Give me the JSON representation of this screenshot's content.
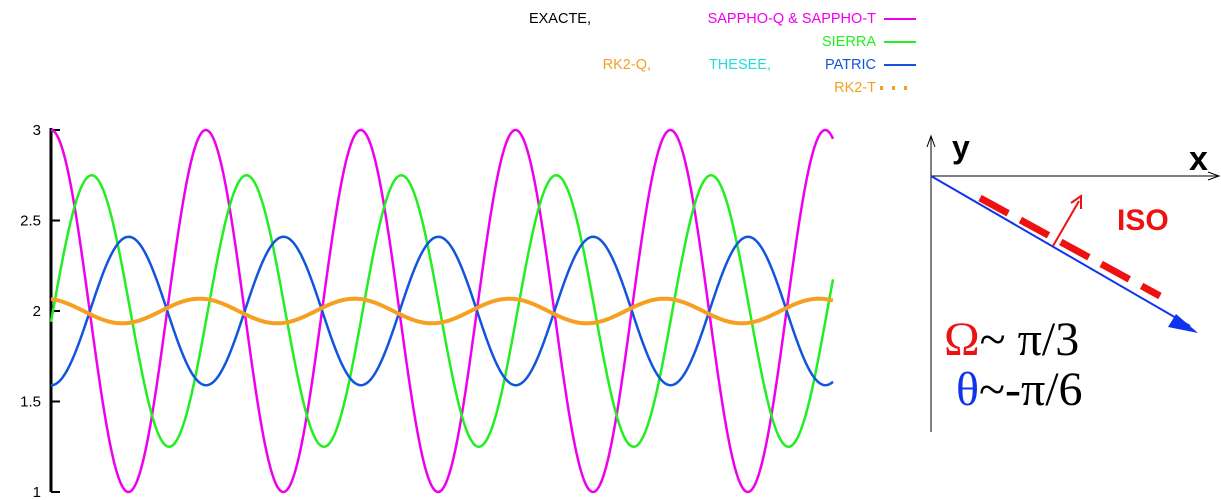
{
  "legend": {
    "row1_a": "EXACTE,",
    "row1_b": "SAPPHO-Q & SAPPHO-T",
    "row2": "SIERRA",
    "row3_a": "RK2-Q,",
    "row3_b": "THESEE,",
    "row3_c": "PATRIC",
    "row4": "RK2-T"
  },
  "inset": {
    "y_label": "y",
    "x_label": "x",
    "iso_label": "ISO",
    "omega_symbol": "Ω",
    "omega_value": "~ π/3",
    "theta_symbol": "θ",
    "theta_value": "~-π/6"
  },
  "colors": {
    "exacte": "#ee00ee",
    "sierra": "#22ee22",
    "patric": "#1155dd",
    "thesee": "#22dddd",
    "rk2": "#f5a020",
    "iso": "#ee1111",
    "omega": "#ee1111",
    "theta": "#1133ee"
  },
  "chart_data": {
    "type": "line",
    "x_range": [
      0,
      1
    ],
    "ylim": [
      1,
      3
    ],
    "yticks": [
      "1",
      "1.5",
      "2",
      "2.5",
      "3"
    ],
    "ytick_values": [
      1,
      1.5,
      2,
      2.5,
      3
    ],
    "series": [
      {
        "name": "SAPPHO-Q & SAPPHO-T",
        "color": "#ee00ee",
        "style": "solid",
        "mean": 2.0,
        "amplitude": 1.0,
        "cycles": 5.05,
        "phase": 0.0
      },
      {
        "name": "SIERRA",
        "color": "#22ee22",
        "style": "solid",
        "mean": 2.0,
        "amplitude": 0.75,
        "cycles": 5.05,
        "phase": -1.65
      },
      {
        "name": "PATRIC",
        "color": "#1155dd",
        "style": "solid",
        "mean": 2.0,
        "amplitude": 0.41,
        "cycles": 5.05,
        "phase": -3.15
      },
      {
        "name": "RK2-T",
        "color": "#f5a020",
        "style": "dotted",
        "mean": 2.0,
        "amplitude": 0.068,
        "cycles": 5.05,
        "phase": 0.25
      }
    ]
  }
}
